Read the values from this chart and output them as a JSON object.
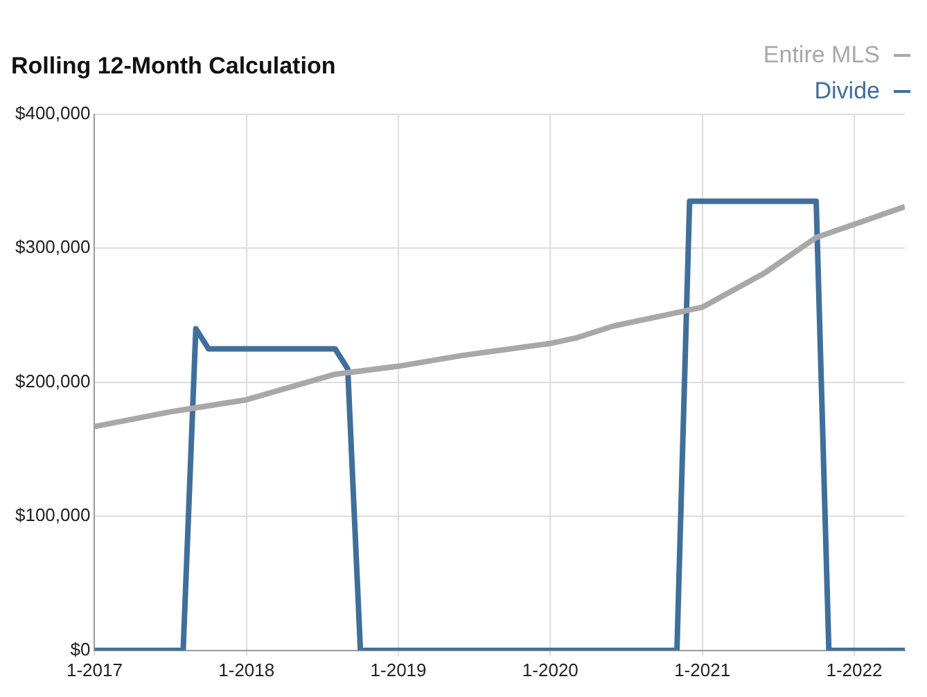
{
  "chart_data": {
    "type": "line",
    "title": "Rolling 12-Month Calculation",
    "xlim": [
      "2017-01",
      "2022-05"
    ],
    "xticks": [
      {
        "value": "2017-01",
        "label": "1-2017"
      },
      {
        "value": "2018-01",
        "label": "1-2018"
      },
      {
        "value": "2019-01",
        "label": "1-2019"
      },
      {
        "value": "2020-01",
        "label": "1-2020"
      },
      {
        "value": "2021-01",
        "label": "1-2021"
      },
      {
        "value": "2022-01",
        "label": "1-2022"
      }
    ],
    "ylim": [
      0,
      400000
    ],
    "yticks": [
      {
        "value": 0,
        "label": "$0"
      },
      {
        "value": 100000,
        "label": "$100,000"
      },
      {
        "value": 200000,
        "label": "$200,000"
      },
      {
        "value": 300000,
        "label": "$300,000"
      },
      {
        "value": 400000,
        "label": "$400,000"
      }
    ],
    "grid": true,
    "legend": "top right",
    "marker": "none",
    "line_style": "solid",
    "series": [
      {
        "name": "Entire MLS",
        "color": "#a8a8a8",
        "x": [
          "2017-01",
          "2017-07",
          "2018-01",
          "2018-08",
          "2019-01",
          "2019-06",
          "2020-01",
          "2020-03",
          "2020-06",
          "2020-10",
          "2021-01",
          "2021-06",
          "2021-10",
          "2022-05"
        ],
        "values": [
          167000,
          178000,
          187000,
          206000,
          212000,
          220000,
          229000,
          233000,
          242000,
          250000,
          256000,
          282000,
          308000,
          331000
        ]
      },
      {
        "name": "Divide",
        "color": "#3f6f9a",
        "x": [
          "2017-01",
          "2017-08",
          "2017-09",
          "2017-10",
          "2018-08",
          "2018-09",
          "2018-10",
          "2020-11",
          "2020-12",
          "2021-10",
          "2021-11",
          "2022-05"
        ],
        "values": [
          0,
          0,
          240000,
          225000,
          225000,
          210000,
          0,
          0,
          335000,
          335000,
          0,
          0
        ]
      }
    ]
  }
}
